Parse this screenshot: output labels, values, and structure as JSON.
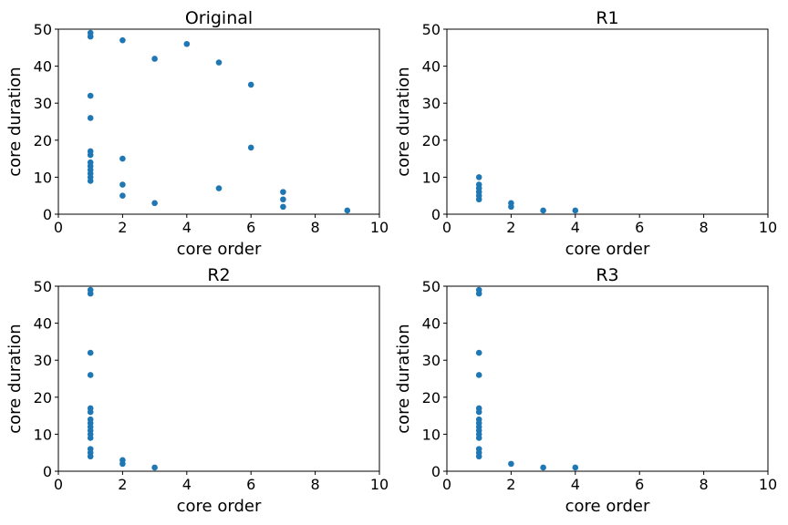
{
  "chart_data": [
    {
      "type": "scatter",
      "title": "Original",
      "xlabel": "core order",
      "ylabel": "core duration",
      "xlim": [
        0,
        10
      ],
      "ylim": [
        0,
        50
      ],
      "xticks": [
        "0",
        "2",
        "4",
        "6",
        "8",
        "10"
      ],
      "yticks": [
        "0",
        "10",
        "20",
        "30",
        "40",
        "50"
      ],
      "grid": false,
      "color": "#1f77b4",
      "points": [
        [
          1,
          49
        ],
        [
          1,
          48
        ],
        [
          1,
          32
        ],
        [
          1,
          26
        ],
        [
          1,
          17
        ],
        [
          1,
          16
        ],
        [
          1,
          14
        ],
        [
          1,
          13
        ],
        [
          1,
          12
        ],
        [
          1,
          11
        ],
        [
          1,
          10
        ],
        [
          1,
          9
        ],
        [
          2,
          47
        ],
        [
          2,
          15
        ],
        [
          2,
          8
        ],
        [
          2,
          5
        ],
        [
          3,
          42
        ],
        [
          3,
          3
        ],
        [
          4,
          46
        ],
        [
          5,
          41
        ],
        [
          5,
          7
        ],
        [
          6,
          35
        ],
        [
          6,
          18
        ],
        [
          7,
          6
        ],
        [
          7,
          4
        ],
        [
          7,
          2
        ],
        [
          9,
          1
        ]
      ]
    },
    {
      "type": "scatter",
      "title": "R1",
      "xlabel": "core order",
      "ylabel": "core duration",
      "xlim": [
        0,
        10
      ],
      "ylim": [
        0,
        50
      ],
      "xticks": [
        "0",
        "2",
        "4",
        "6",
        "8",
        "10"
      ],
      "yticks": [
        "0",
        "10",
        "20",
        "30",
        "40",
        "50"
      ],
      "grid": false,
      "color": "#1f77b4",
      "points": [
        [
          1,
          10
        ],
        [
          1,
          8
        ],
        [
          1,
          7
        ],
        [
          1,
          6
        ],
        [
          1,
          5
        ],
        [
          1,
          4
        ],
        [
          2,
          3
        ],
        [
          2,
          2
        ],
        [
          3,
          1
        ],
        [
          4,
          1
        ]
      ]
    },
    {
      "type": "scatter",
      "title": "R2",
      "xlabel": "core order",
      "ylabel": "core duration",
      "xlim": [
        0,
        10
      ],
      "ylim": [
        0,
        50
      ],
      "xticks": [
        "0",
        "2",
        "4",
        "6",
        "8",
        "10"
      ],
      "yticks": [
        "0",
        "10",
        "20",
        "30",
        "40",
        "50"
      ],
      "grid": false,
      "color": "#1f77b4",
      "points": [
        [
          1,
          49
        ],
        [
          1,
          48
        ],
        [
          1,
          32
        ],
        [
          1,
          26
        ],
        [
          1,
          17
        ],
        [
          1,
          16
        ],
        [
          1,
          14
        ],
        [
          1,
          13
        ],
        [
          1,
          12
        ],
        [
          1,
          11
        ],
        [
          1,
          10
        ],
        [
          1,
          9
        ],
        [
          1,
          6
        ],
        [
          1,
          5
        ],
        [
          1,
          4
        ],
        [
          2,
          3
        ],
        [
          2,
          2
        ],
        [
          3,
          1
        ]
      ]
    },
    {
      "type": "scatter",
      "title": "R3",
      "xlabel": "core order",
      "ylabel": "core duration",
      "xlim": [
        0,
        10
      ],
      "ylim": [
        0,
        50
      ],
      "xticks": [
        "0",
        "2",
        "4",
        "6",
        "8",
        "10"
      ],
      "yticks": [
        "0",
        "10",
        "20",
        "30",
        "40",
        "50"
      ],
      "grid": false,
      "color": "#1f77b4",
      "points": [
        [
          1,
          49
        ],
        [
          1,
          48
        ],
        [
          1,
          32
        ],
        [
          1,
          26
        ],
        [
          1,
          17
        ],
        [
          1,
          16
        ],
        [
          1,
          14
        ],
        [
          1,
          13
        ],
        [
          1,
          12
        ],
        [
          1,
          11
        ],
        [
          1,
          10
        ],
        [
          1,
          9
        ],
        [
          1,
          6
        ],
        [
          1,
          5
        ],
        [
          1,
          4
        ],
        [
          2,
          2
        ],
        [
          3,
          1
        ],
        [
          4,
          1
        ]
      ]
    }
  ]
}
